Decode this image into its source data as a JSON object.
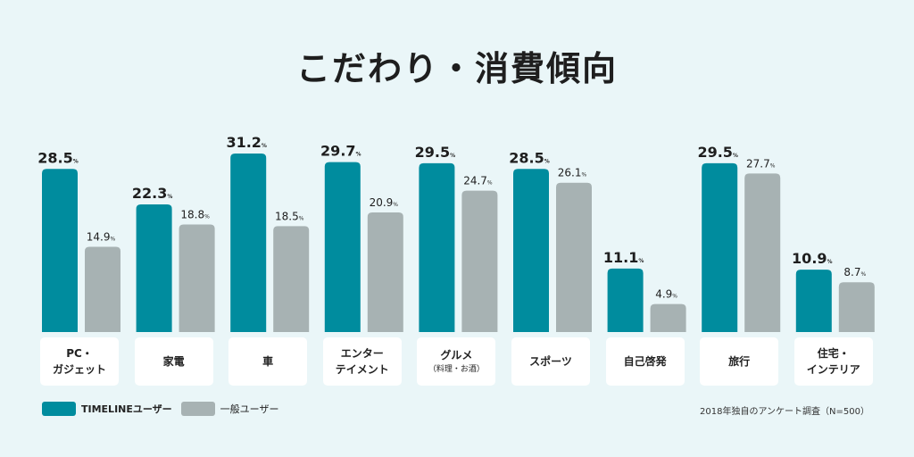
{
  "chart_data": {
    "type": "bar",
    "title": "こだわり・消費傾向",
    "categories": [
      {
        "line1": "PC・",
        "line2": "ガジェット"
      },
      {
        "line1": "家電",
        "line2": ""
      },
      {
        "line1": "車",
        "line2": ""
      },
      {
        "line1": "エンター",
        "line2": "テイメント"
      },
      {
        "line1": "グルメ",
        "line2": "（料理・お酒）"
      },
      {
        "line1": "スポーツ",
        "line2": ""
      },
      {
        "line1": "自己啓発",
        "line2": ""
      },
      {
        "line1": "旅行",
        "line2": ""
      },
      {
        "line1": "住宅・",
        "line2": "インテリア"
      }
    ],
    "series": [
      {
        "name": "TIMELINEユーザー",
        "color": "#008c9e",
        "values": [
          28.5,
          22.3,
          31.2,
          29.7,
          29.5,
          28.5,
          11.1,
          29.5,
          10.9
        ]
      },
      {
        "name": "一般ユーザー",
        "color": "#a7b2b3",
        "values": [
          14.9,
          18.8,
          18.5,
          20.9,
          24.7,
          26.1,
          4.9,
          27.7,
          8.7
        ]
      }
    ],
    "unit": "%",
    "ylim": [
      0,
      32
    ],
    "legend": "bottom-left",
    "note": "2018年独自のアンケート調査（N=500）"
  }
}
